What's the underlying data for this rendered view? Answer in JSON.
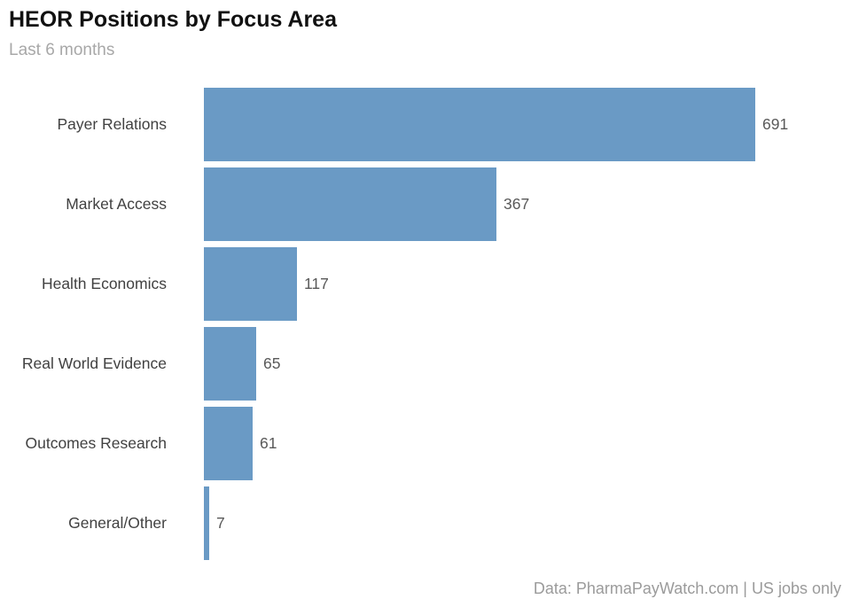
{
  "chart_data": {
    "type": "bar",
    "orientation": "horizontal",
    "title": "HEOR Positions by Focus Area",
    "subtitle": "Last 6 months",
    "categories": [
      "Payer Relations",
      "Market Access",
      "Health Economics",
      "Real World Evidence",
      "Outcomes Research",
      "General/Other"
    ],
    "values": [
      691,
      367,
      117,
      65,
      61,
      7
    ],
    "xlim": [
      0,
      800
    ],
    "grid": false,
    "legend": "none",
    "value_labels": "outside-right",
    "bar_color": "#6a9ac5",
    "footer": "Data: PharmaPayWatch.com | US jobs only"
  }
}
